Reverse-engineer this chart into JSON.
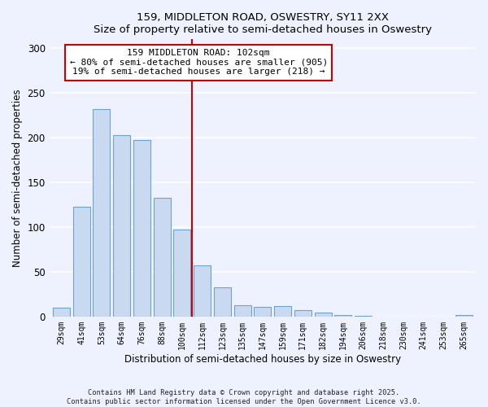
{
  "title": "159, MIDDLETON ROAD, OSWESTRY, SY11 2XX",
  "subtitle": "Size of property relative to semi-detached houses in Oswestry",
  "xlabel": "Distribution of semi-detached houses by size in Oswestry",
  "ylabel": "Number of semi-detached properties",
  "bar_labels": [
    "29sqm",
    "41sqm",
    "53sqm",
    "64sqm",
    "76sqm",
    "88sqm",
    "100sqm",
    "112sqm",
    "123sqm",
    "135sqm",
    "147sqm",
    "159sqm",
    "171sqm",
    "182sqm",
    "194sqm",
    "206sqm",
    "218sqm",
    "230sqm",
    "241sqm",
    "253sqm",
    "265sqm"
  ],
  "bar_values": [
    10,
    123,
    232,
    203,
    197,
    133,
    97,
    57,
    33,
    13,
    11,
    12,
    7,
    4,
    2,
    1,
    0,
    0,
    0,
    0,
    2
  ],
  "bar_color": "#c9d9f0",
  "bar_edge_color": "#6ba3d6",
  "vline_x": 6.5,
  "vline_color": "#cc0000",
  "annotation_line1": "159 MIDDLETON ROAD: 102sqm",
  "annotation_line2": "← 80% of semi-detached houses are smaller (905)",
  "annotation_line3": "19% of semi-detached houses are larger (218) →",
  "annotation_box_color": "#ffffff",
  "annotation_box_edge": "#cc0000",
  "ylim": [
    0,
    310
  ],
  "yticks": [
    0,
    50,
    100,
    150,
    200,
    250,
    300
  ],
  "bg_color": "#eef2ff",
  "plot_bg_color": "#eef2ff",
  "footer_line1": "Contains HM Land Registry data © Crown copyright and database right 2025.",
  "footer_line2": "Contains public sector information licensed under the Open Government Licence v3.0."
}
